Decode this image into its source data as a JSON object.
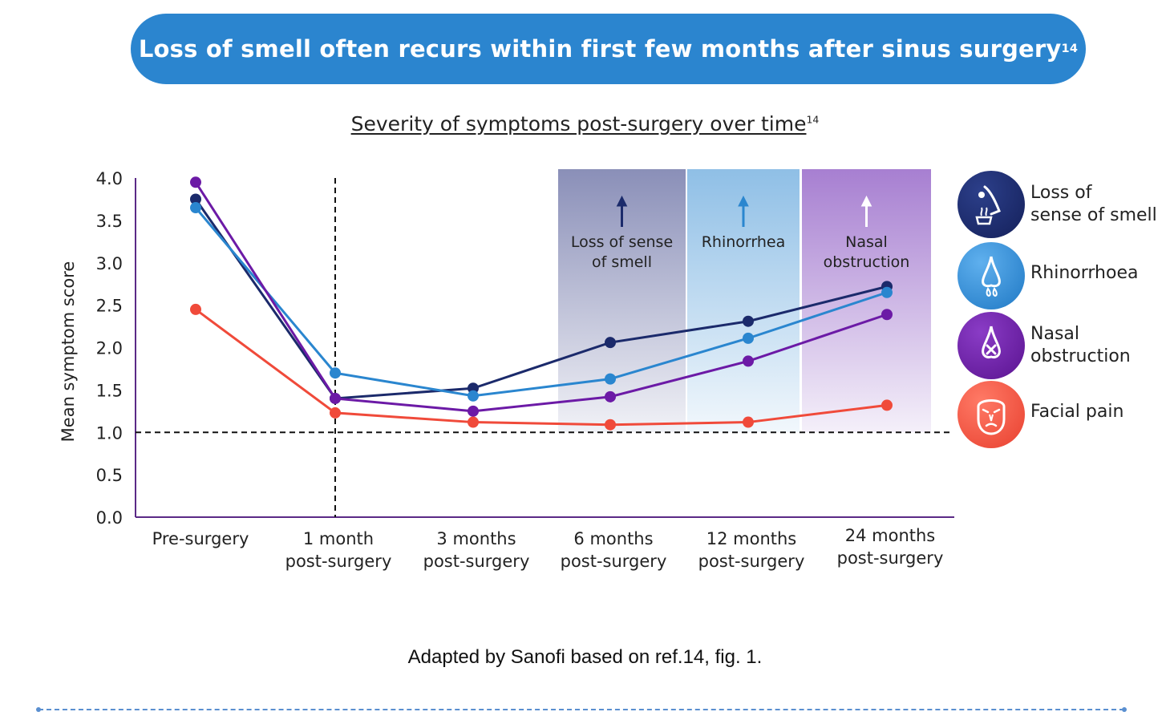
{
  "banner": {
    "text": "Loss of smell often recurs within first few months after sinus surgery",
    "ref": "14"
  },
  "subtitle": {
    "text": "Severity of symptoms post-surgery over time",
    "ref": "14"
  },
  "source_note": "Adapted by Sanofi based on ref.14, fig. 1.",
  "chart_data": {
    "type": "line",
    "ylabel": "Mean symptom score",
    "ylim": [
      0,
      4.0
    ],
    "yticks": [
      "0.0",
      "0.5",
      "1.0",
      "1.5",
      "2.0",
      "2.5",
      "3.0",
      "3.5",
      "4.0"
    ],
    "categories": [
      [
        "Pre-surgery"
      ],
      [
        "1 month",
        "post-surgery"
      ],
      [
        "3 months",
        "post-surgery"
      ],
      [
        "6 months",
        "post-surgery"
      ],
      [
        "12 months",
        "post-surgery"
      ],
      [
        "24 months",
        "post-surgery"
      ]
    ],
    "reference_line_y": 1.0,
    "reference_line_x_category": 1,
    "series": [
      {
        "name": "Loss of sense of smell",
        "color": "#1b2a6b",
        "values": [
          3.75,
          1.4,
          1.52,
          2.06,
          2.31,
          2.72
        ]
      },
      {
        "name": "Rhinorrhoea",
        "color": "#2a86cf",
        "values": [
          3.65,
          1.7,
          1.43,
          1.63,
          2.11,
          2.65
        ]
      },
      {
        "name": "Nasal obstruction",
        "color": "#6c1aa6",
        "values": [
          3.95,
          1.4,
          1.25,
          1.42,
          1.84,
          2.39
        ]
      },
      {
        "name": "Facial pain",
        "color": "#f04a3a",
        "values": [
          2.45,
          1.23,
          1.12,
          1.09,
          1.12,
          1.32
        ]
      }
    ],
    "highlight_bands": [
      {
        "category": 3,
        "label": [
          "Loss of sense",
          "of smell"
        ],
        "arrow_color": "#1b2a6b",
        "color": "#8a8fb8"
      },
      {
        "category": 4,
        "label": [
          "Rhinorrhea"
        ],
        "arrow_color": "#2a86cf",
        "color": "#8fbfe6"
      },
      {
        "category": 5,
        "label": [
          "Nasal",
          "obstruction"
        ],
        "arrow_color": "#ffffff",
        "color": "#a77fd1"
      }
    ],
    "legend_placement": "right"
  },
  "legend": [
    {
      "label": "Loss of\nsense of smell",
      "icon": "nose-smell-icon",
      "color": "#1b2a6b"
    },
    {
      "label": "Rhinorrhoea",
      "icon": "runny-nose-icon",
      "color": "#2a86cf"
    },
    {
      "label": "Nasal\nobstruction",
      "icon": "blocked-nose-icon",
      "color": "#6c1aa6"
    },
    {
      "label": "Facial pain",
      "icon": "facial-pain-icon",
      "color": "#f04a3a"
    }
  ]
}
